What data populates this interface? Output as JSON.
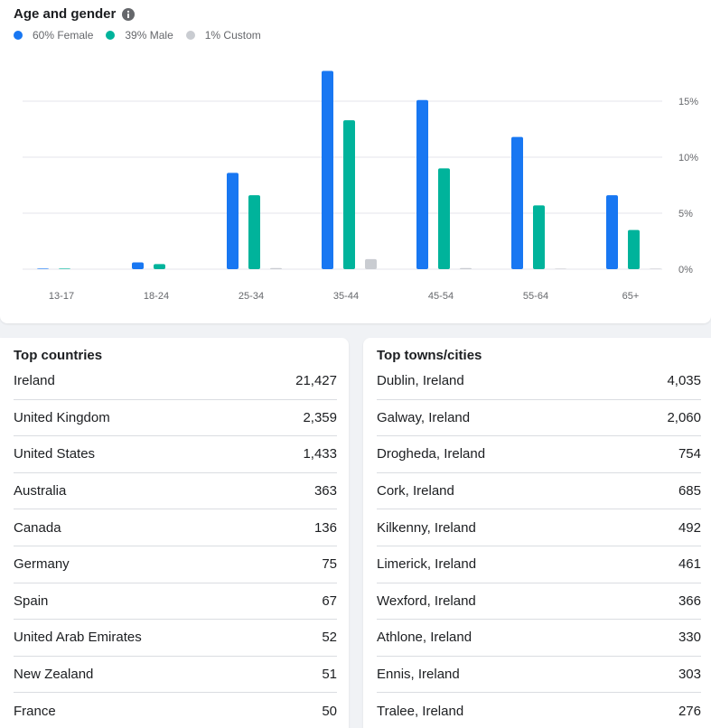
{
  "age_gender": {
    "title": "Age and gender",
    "legend": [
      {
        "label": "60% Female",
        "color": "#1877f2"
      },
      {
        "label": "39% Male",
        "color": "#00b39b"
      },
      {
        "label": "1% Custom",
        "color": "#c9ccd1"
      }
    ]
  },
  "chart_data": {
    "type": "bar",
    "categories": [
      "13-17",
      "18-24",
      "25-34",
      "35-44",
      "45-54",
      "55-64",
      "65+"
    ],
    "series": [
      {
        "name": "Female",
        "color": "#1877f2",
        "values": [
          0.05,
          0.6,
          8.6,
          17.7,
          15.1,
          11.8,
          6.6
        ]
      },
      {
        "name": "Male",
        "color": "#00b39b",
        "values": [
          0.05,
          0.45,
          6.6,
          13.3,
          9.0,
          5.7,
          3.5
        ]
      },
      {
        "name": "Custom",
        "color": "#c9ccd1",
        "values": [
          0,
          0,
          0.1,
          0.9,
          0.1,
          0.05,
          0.05
        ]
      }
    ],
    "yticks": [
      "0%",
      "5%",
      "10%",
      "15%"
    ],
    "ylim": [
      0,
      18.5
    ],
    "grid": true
  },
  "top_countries": {
    "title": "Top countries",
    "rows": [
      {
        "name": "Ireland",
        "value": "21,427"
      },
      {
        "name": "United Kingdom",
        "value": "2,359"
      },
      {
        "name": "United States",
        "value": "1,433"
      },
      {
        "name": "Australia",
        "value": "363"
      },
      {
        "name": "Canada",
        "value": "136"
      },
      {
        "name": "Germany",
        "value": "75"
      },
      {
        "name": "Spain",
        "value": "67"
      },
      {
        "name": "United Arab Emirates",
        "value": "52"
      },
      {
        "name": "New Zealand",
        "value": "51"
      },
      {
        "name": "France",
        "value": "50"
      }
    ]
  },
  "top_towns": {
    "title": "Top towns/cities",
    "rows": [
      {
        "name": "Dublin, Ireland",
        "value": "4,035"
      },
      {
        "name": "Galway, Ireland",
        "value": "2,060"
      },
      {
        "name": "Drogheda, Ireland",
        "value": "754"
      },
      {
        "name": "Cork, Ireland",
        "value": "685"
      },
      {
        "name": "Kilkenny, Ireland",
        "value": "492"
      },
      {
        "name": "Limerick, Ireland",
        "value": "461"
      },
      {
        "name": "Wexford, Ireland",
        "value": "366"
      },
      {
        "name": "Athlone, Ireland",
        "value": "330"
      },
      {
        "name": "Ennis, Ireland",
        "value": "303"
      },
      {
        "name": "Tralee, Ireland",
        "value": "276"
      }
    ]
  },
  "icons": {
    "info": "info-icon"
  }
}
